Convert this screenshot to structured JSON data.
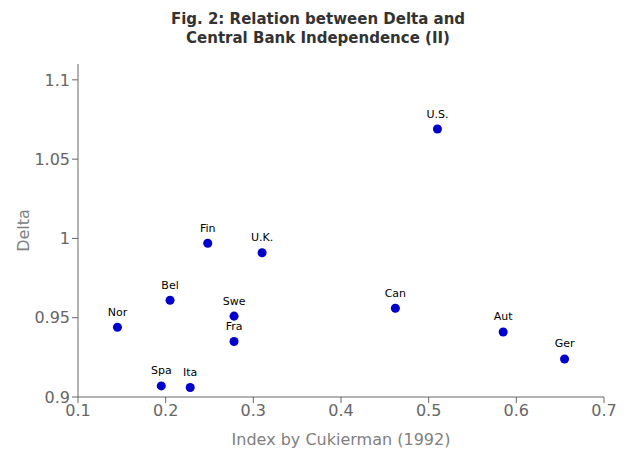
{
  "chart_data": {
    "type": "scatter",
    "title": "Fig. 2: Relation between Delta and\nCentral Bank Independence (II)",
    "xlabel": "Index by Cukierman (1992)",
    "ylabel": "Delta",
    "xlim": [
      0.1,
      0.7
    ],
    "ylim": [
      0.9,
      1.11
    ],
    "xticks": [
      0.1,
      0.2,
      0.3,
      0.4,
      0.5,
      0.6,
      0.7
    ],
    "yticks": [
      0.9,
      0.95,
      1,
      1.05,
      1.1
    ],
    "x": [
      0.145,
      0.195,
      0.205,
      0.228,
      0.248,
      0.278,
      0.278,
      0.31,
      0.462,
      0.51,
      0.585,
      0.655
    ],
    "values": [
      0.944,
      0.907,
      0.961,
      0.906,
      0.997,
      0.951,
      0.935,
      0.991,
      0.956,
      1.069,
      0.941,
      0.924
    ],
    "labels": [
      "Nor",
      "Spa",
      "Bel",
      "Ita",
      "Fin",
      "Swe",
      "Fra",
      "U.K.",
      "Can",
      "U.S.",
      "Aut",
      "Ger"
    ],
    "color": "#0000CC",
    "grid": false
  }
}
